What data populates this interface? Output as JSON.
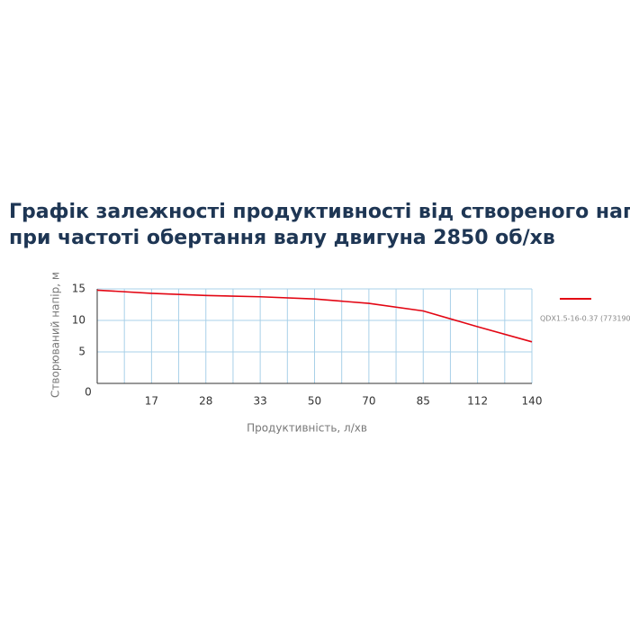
{
  "chart_data": {
    "type": "line",
    "title": [
      "Графік залежності продуктивності від створеного напору",
      "при частоті обертання валу двигуна 2850 об/хв"
    ],
    "x_label": "Продуктивність, л/хв",
    "y_label": "Створюваний напір, м",
    "categories": [
      "0",
      "17",
      "28",
      "33",
      "50",
      "70",
      "85",
      "112",
      "140"
    ],
    "series": [
      {
        "name": "QDX1.5-16-0.37 (773190)",
        "color": "#e30613",
        "values": [
          14.8,
          14.3,
          13.95,
          13.75,
          13.4,
          12.7,
          11.5,
          9.0,
          6.6
        ]
      }
    ],
    "ylim": [
      0,
      15
    ],
    "yticks": [
      5,
      10,
      15
    ],
    "grid": true,
    "legend": "right"
  }
}
